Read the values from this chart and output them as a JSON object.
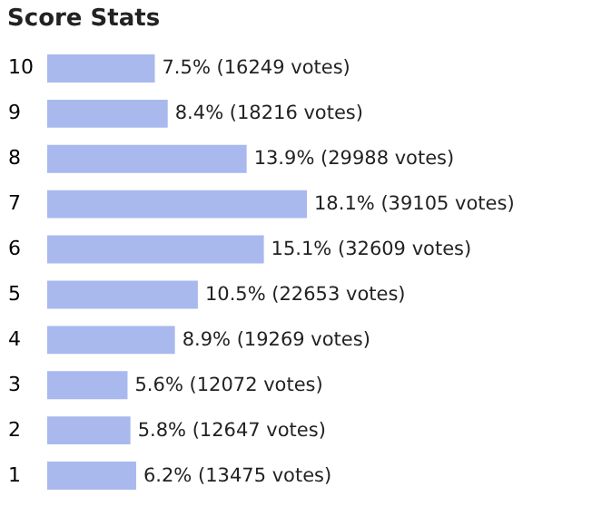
{
  "chart_data": {
    "type": "bar",
    "orientation": "horizontal",
    "title": "Score Stats",
    "categories": [
      "10",
      "9",
      "8",
      "7",
      "6",
      "5",
      "4",
      "3",
      "2",
      "1"
    ],
    "values": [
      7.5,
      8.4,
      13.9,
      18.1,
      15.1,
      10.5,
      8.9,
      5.6,
      5.8,
      6.2
    ],
    "value_labels": [
      "7.5% (16249 votes)",
      "8.4% (18216 votes)",
      "13.9% (29988 votes)",
      "18.1% (39105 votes)",
      "15.1% (32609 votes)",
      "10.5% (22653 votes)",
      "8.9% (19269 votes)",
      "5.6% (12072 votes)",
      "5.8% (12647 votes)",
      "6.2% (13475 votes)"
    ],
    "color": "#a9b9ee",
    "grid": false
  }
}
